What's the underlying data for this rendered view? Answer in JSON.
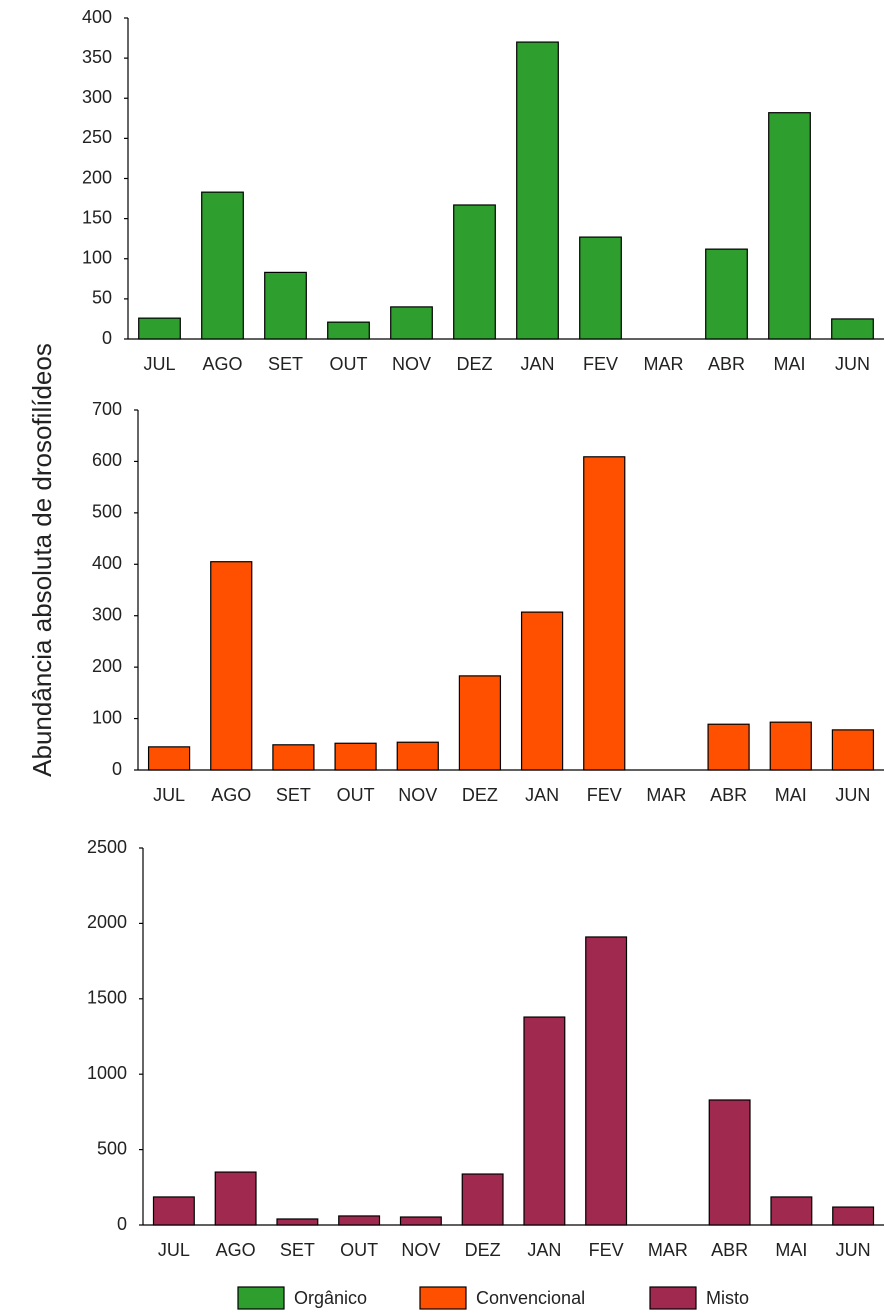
{
  "ylabel": "Abundância absoluta de drosofilídeos",
  "chart_data": [
    {
      "type": "bar",
      "categories": [
        "JUL",
        "AGO",
        "SET",
        "OUT",
        "NOV",
        "DEZ",
        "JAN",
        "FEV",
        "MAR",
        "ABR",
        "MAI",
        "JUN"
      ],
      "series": [
        {
          "name": "Orgânico",
          "color": "#2e9e2e",
          "values": [
            26,
            183,
            83,
            21,
            40,
            167,
            370,
            127,
            0,
            112,
            282,
            25
          ]
        }
      ],
      "ylim": [
        0,
        400
      ],
      "yticks": [
        0,
        50,
        100,
        150,
        200,
        250,
        300,
        350,
        400
      ]
    },
    {
      "type": "bar",
      "categories": [
        "JUL",
        "AGO",
        "SET",
        "OUT",
        "NOV",
        "DEZ",
        "JAN",
        "FEV",
        "MAR",
        "ABR",
        "MAI",
        "JUN"
      ],
      "series": [
        {
          "name": "Convencional",
          "color": "#ff5000",
          "values": [
            45,
            405,
            49,
            52,
            54,
            183,
            307,
            609,
            0,
            89,
            93,
            78
          ]
        }
      ],
      "ylim": [
        0,
        700
      ],
      "yticks": [
        0,
        100,
        200,
        300,
        400,
        500,
        600,
        700
      ]
    },
    {
      "type": "bar",
      "categories": [
        "JUL",
        "AGO",
        "SET",
        "OUT",
        "NOV",
        "DEZ",
        "JAN",
        "FEV",
        "MAR",
        "ABR",
        "MAI",
        "JUN"
      ],
      "series": [
        {
          "name": "Misto",
          "color": "#a0294f",
          "values": [
            186,
            351,
            40,
            60,
            53,
            338,
            1379,
            1910,
            0,
            829,
            186,
            119
          ]
        }
      ],
      "ylim": [
        0,
        2500
      ],
      "yticks": [
        0,
        500,
        1000,
        1500,
        2000,
        2500
      ]
    }
  ]
}
